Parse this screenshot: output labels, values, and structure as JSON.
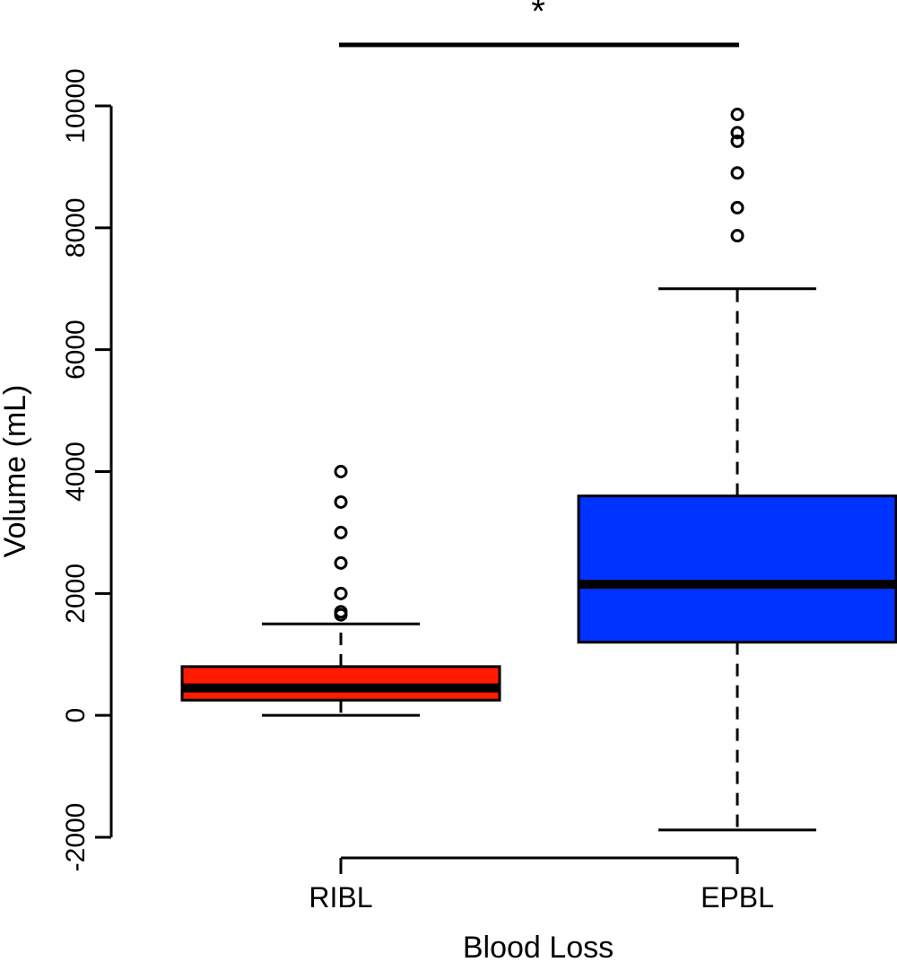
{
  "chart_data": {
    "type": "boxplot",
    "title": "",
    "xlabel": "Blood Loss",
    "ylabel": "Volume (mL)",
    "ylim": [
      -2000,
      10000
    ],
    "yticks": [
      -2000,
      0,
      2000,
      4000,
      6000,
      8000,
      10000
    ],
    "ytick_labels": [
      "-2000",
      "0",
      "2000",
      "4000",
      "6000",
      "8000",
      "10000"
    ],
    "categories": [
      "RIBL",
      "EPBL"
    ],
    "grid": false,
    "legend": "none",
    "boxes": [
      {
        "category": "RIBL",
        "color": "#ff1a00",
        "whisker_low": 0,
        "q1": 250,
        "median": 450,
        "q3": 800,
        "whisker_high": 1500,
        "outliers": [
          1650,
          1700,
          2000,
          2500,
          3000,
          3500,
          4000
        ]
      },
      {
        "category": "EPBL",
        "color": "#0033ff",
        "whisker_low": -1880,
        "q1": 1200,
        "median": 2150,
        "q3": 3600,
        "whisker_high": 7000,
        "outliers": [
          7870,
          8330,
          8900,
          9420,
          9560,
          9860
        ]
      }
    ],
    "significance": {
      "label": "*",
      "between": [
        "RIBL",
        "EPBL"
      ]
    }
  }
}
